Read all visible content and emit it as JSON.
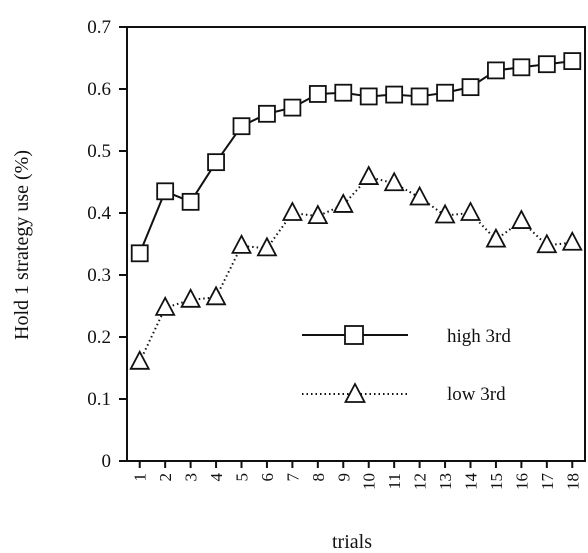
{
  "chart_data": {
    "type": "line",
    "title": "",
    "xlabel": "trials",
    "ylabel": "Hold 1 strategy use (%)",
    "x": [
      1,
      2,
      3,
      4,
      5,
      6,
      7,
      8,
      9,
      10,
      11,
      12,
      13,
      14,
      15,
      16,
      17,
      18
    ],
    "ylim": [
      0,
      0.7
    ],
    "yticks": [
      0,
      0.1,
      0.2,
      0.3,
      0.4,
      0.5,
      0.6,
      0.7
    ],
    "ytick_labels": [
      "0",
      "0.1",
      "0.2",
      "0.3",
      "0.4",
      "0.5",
      "0.6",
      "0.7"
    ],
    "grid": false,
    "legend": "inside, lower right",
    "series": [
      {
        "name": "high 3rd",
        "marker": "square",
        "line": "solid",
        "color": "#111111",
        "values": [
          0.335,
          0.435,
          0.418,
          0.482,
          0.54,
          0.56,
          0.57,
          0.592,
          0.594,
          0.588,
          0.591,
          0.588,
          0.594,
          0.603,
          0.63,
          0.635,
          0.64,
          0.645
        ]
      },
      {
        "name": "low 3rd",
        "marker": "triangle",
        "line": "dotted",
        "color": "#111111",
        "values": [
          0.16,
          0.247,
          0.26,
          0.264,
          0.347,
          0.343,
          0.4,
          0.395,
          0.413,
          0.458,
          0.448,
          0.425,
          0.396,
          0.4,
          0.357,
          0.387,
          0.348,
          0.352
        ]
      }
    ]
  }
}
